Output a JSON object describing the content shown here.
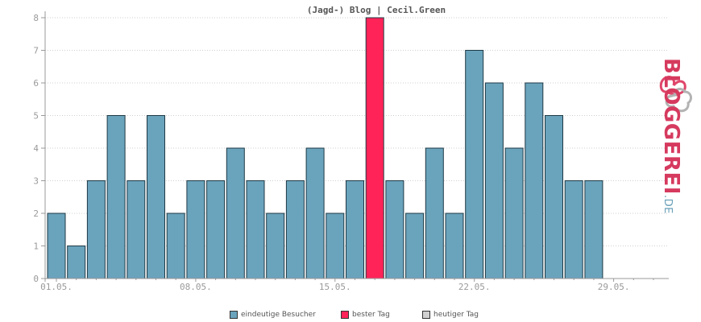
{
  "chart_data": {
    "type": "bar",
    "title": "(Jagd-) Blog | Cecil.Green",
    "x": [
      "01.05.",
      "02.05.",
      "03.05.",
      "04.05.",
      "05.05.",
      "06.05.",
      "07.05.",
      "08.05.",
      "09.05.",
      "10.05.",
      "11.05.",
      "12.05.",
      "13.05.",
      "14.05.",
      "15.05.",
      "16.05.",
      "17.05.",
      "18.05.",
      "19.05.",
      "20.05.",
      "21.05.",
      "22.05.",
      "23.05.",
      "24.05.",
      "25.05.",
      "26.05.",
      "27.05.",
      "28.05."
    ],
    "values": [
      2,
      1,
      3,
      5,
      3,
      5,
      2,
      3,
      3,
      4,
      3,
      2,
      3,
      4,
      2,
      3,
      8,
      3,
      2,
      4,
      2,
      7,
      6,
      4,
      6,
      5,
      3,
      3
    ],
    "x_tick_labels": [
      "01.05.",
      "08.05.",
      "15.05.",
      "22.05.",
      "29.05."
    ],
    "y_tick_labels": [
      "0",
      "1",
      "2",
      "3",
      "4",
      "5",
      "6",
      "7",
      "8"
    ],
    "ylim": [
      0,
      8
    ],
    "highlight_index": 16,
    "grid": true,
    "legend_position": "bottom-center",
    "colors": {
      "bar": "#6aa3bc",
      "best": "#ff2358",
      "today": "#d0d0d0",
      "bar_outline": "#1f3a45"
    }
  },
  "legend": {
    "items": [
      {
        "label": "eindeutige Besucher",
        "color": "#6aa3bc"
      },
      {
        "label": "bester Tag",
        "color": "#ff2358"
      },
      {
        "label": "heutiger Tag",
        "color": "#d0d0d0"
      }
    ]
  },
  "logo": {
    "main": "BLOGGEREI",
    "ext": ".DE"
  }
}
